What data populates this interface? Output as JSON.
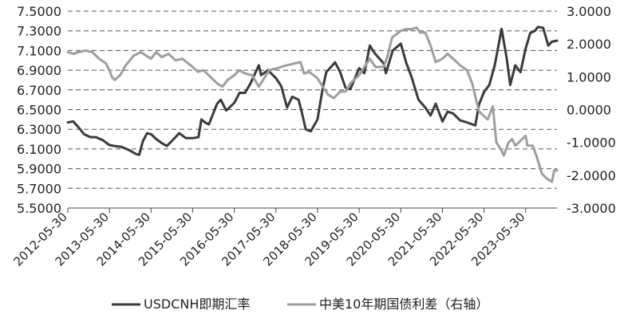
{
  "chart_data": {
    "type": "line",
    "title": "",
    "xlabel": "",
    "ylabel": "",
    "x_tick_labels": [
      "2012-05-30",
      "2013-05-30",
      "2014-05-30",
      "2015-05-30",
      "2016-05-30",
      "2017-05-30",
      "2018-05-30",
      "2019-05-30",
      "2020-05-30",
      "2021-05-30",
      "2022-05-30",
      "2023-05-30"
    ],
    "x_range": [
      "2012-05-30",
      "2024-02-29"
    ],
    "left_axis": {
      "ylim": [
        5.5,
        7.5
      ],
      "tick_labels": [
        "5.5000",
        "5.7000",
        "5.9000",
        "6.1000",
        "6.3000",
        "6.5000",
        "6.7000",
        "6.9000",
        "7.1000",
        "7.3000",
        "7.5000"
      ],
      "ticks": [
        5.5,
        5.7,
        5.9,
        6.1,
        6.3,
        6.5,
        6.7,
        6.9,
        7.1,
        7.3,
        7.5
      ]
    },
    "right_axis": {
      "ylim": [
        -3.0,
        3.0
      ],
      "tick_labels": [
        "-3.0000",
        "-2.0000",
        "-1.0000",
        "0.0000",
        "1.0000",
        "2.0000",
        "3.0000"
      ],
      "ticks": [
        -3,
        -2,
        -1,
        0,
        1,
        2,
        3
      ]
    },
    "grid": true,
    "legend_position": "bottom",
    "series": [
      {
        "name": "USDCNH即期汇率",
        "axis": "left",
        "color": "#3a3a3a",
        "points": [
          [
            "2012-05-30",
            6.37
          ],
          [
            "2012-07-15",
            6.38
          ],
          [
            "2012-09-01",
            6.32
          ],
          [
            "2012-10-20",
            6.25
          ],
          [
            "2012-12-15",
            6.22
          ],
          [
            "2013-02-01",
            6.22
          ],
          [
            "2013-04-01",
            6.19
          ],
          [
            "2013-05-30",
            6.14
          ],
          [
            "2013-07-15",
            6.13
          ],
          [
            "2013-09-15",
            6.12
          ],
          [
            "2013-11-15",
            6.09
          ],
          [
            "2014-01-15",
            6.05
          ],
          [
            "2014-02-15",
            6.04
          ],
          [
            "2014-03-20",
            6.18
          ],
          [
            "2014-04-25",
            6.26
          ],
          [
            "2014-05-30",
            6.25
          ],
          [
            "2014-07-15",
            6.2
          ],
          [
            "2014-09-01",
            6.16
          ],
          [
            "2014-10-15",
            6.13
          ],
          [
            "2014-12-15",
            6.2
          ],
          [
            "2015-02-01",
            6.26
          ],
          [
            "2015-04-01",
            6.21
          ],
          [
            "2015-05-30",
            6.21
          ],
          [
            "2015-07-20",
            6.22
          ],
          [
            "2015-08-15",
            6.4
          ],
          [
            "2015-09-15",
            6.37
          ],
          [
            "2015-10-20",
            6.35
          ],
          [
            "2015-12-31",
            6.56
          ],
          [
            "2016-02-01",
            6.6
          ],
          [
            "2016-03-20",
            6.49
          ],
          [
            "2016-05-30",
            6.57
          ],
          [
            "2016-07-15",
            6.67
          ],
          [
            "2016-09-01",
            6.67
          ],
          [
            "2016-10-20",
            6.77
          ],
          [
            "2016-12-31",
            6.95
          ],
          [
            "2017-01-20",
            6.85
          ],
          [
            "2017-03-20",
            6.9
          ],
          [
            "2017-05-30",
            6.82
          ],
          [
            "2017-07-15",
            6.74
          ],
          [
            "2017-09-05",
            6.52
          ],
          [
            "2017-10-20",
            6.63
          ],
          [
            "2017-12-15",
            6.6
          ],
          [
            "2018-01-15",
            6.46
          ],
          [
            "2018-02-15",
            6.3
          ],
          [
            "2018-04-01",
            6.28
          ],
          [
            "2018-05-30",
            6.4
          ],
          [
            "2018-07-15",
            6.72
          ],
          [
            "2018-08-15",
            6.88
          ],
          [
            "2018-10-31",
            6.98
          ],
          [
            "2018-12-15",
            6.88
          ],
          [
            "2019-01-31",
            6.72
          ],
          [
            "2019-03-15",
            6.71
          ],
          [
            "2019-05-30",
            6.92
          ],
          [
            "2019-07-15",
            6.87
          ],
          [
            "2019-09-01",
            7.15
          ],
          [
            "2019-10-15",
            7.07
          ],
          [
            "2019-12-31",
            6.97
          ],
          [
            "2020-01-20",
            6.87
          ],
          [
            "2020-03-20",
            7.1
          ],
          [
            "2020-05-30",
            7.17
          ],
          [
            "2020-07-15",
            6.98
          ],
          [
            "2020-09-01",
            6.83
          ],
          [
            "2020-11-01",
            6.6
          ],
          [
            "2020-12-31",
            6.52
          ],
          [
            "2021-02-15",
            6.44
          ],
          [
            "2021-04-01",
            6.56
          ],
          [
            "2021-05-30",
            6.38
          ],
          [
            "2021-07-15",
            6.48
          ],
          [
            "2021-09-01",
            6.46
          ],
          [
            "2021-11-01",
            6.39
          ],
          [
            "2021-12-31",
            6.37
          ],
          [
            "2022-02-15",
            6.35
          ],
          [
            "2022-03-15",
            6.34
          ],
          [
            "2022-04-15",
            6.55
          ],
          [
            "2022-05-30",
            6.68
          ],
          [
            "2022-07-15",
            6.75
          ],
          [
            "2022-09-01",
            6.95
          ],
          [
            "2022-10-31",
            7.32
          ],
          [
            "2022-12-15",
            7.02
          ],
          [
            "2023-01-15",
            6.75
          ],
          [
            "2023-02-28",
            6.95
          ],
          [
            "2023-04-15",
            6.88
          ],
          [
            "2023-05-30",
            7.12
          ],
          [
            "2023-07-10",
            7.28
          ],
          [
            "2023-08-20",
            7.3
          ],
          [
            "2023-09-15",
            7.34
          ],
          [
            "2023-10-31",
            7.33
          ],
          [
            "2023-12-15",
            7.15
          ],
          [
            "2024-01-15",
            7.19
          ],
          [
            "2024-02-29",
            7.2
          ]
        ]
      },
      {
        "name": "中美10年期国债利差（右轴）",
        "axis": "right",
        "color": "#9e9e9e",
        "points": [
          [
            "2012-05-30",
            1.75
          ],
          [
            "2012-07-15",
            1.7
          ],
          [
            "2012-09-01",
            1.75
          ],
          [
            "2012-11-01",
            1.8
          ],
          [
            "2013-01-01",
            1.75
          ],
          [
            "2013-03-01",
            1.55
          ],
          [
            "2013-05-01",
            1.4
          ],
          [
            "2013-05-30",
            1.2
          ],
          [
            "2013-06-20",
            1.0
          ],
          [
            "2013-07-15",
            0.9
          ],
          [
            "2013-09-01",
            1.05
          ],
          [
            "2013-10-20",
            1.35
          ],
          [
            "2013-12-31",
            1.65
          ],
          [
            "2014-03-01",
            1.75
          ],
          [
            "2014-05-30",
            1.55
          ],
          [
            "2014-07-15",
            1.75
          ],
          [
            "2014-09-01",
            1.6
          ],
          [
            "2014-11-01",
            1.7
          ],
          [
            "2014-12-31",
            1.5
          ],
          [
            "2015-03-01",
            1.55
          ],
          [
            "2015-05-30",
            1.3
          ],
          [
            "2015-07-15",
            1.15
          ],
          [
            "2015-09-01",
            1.2
          ],
          [
            "2015-11-01",
            1.0
          ],
          [
            "2015-12-31",
            0.8
          ],
          [
            "2016-02-15",
            0.7
          ],
          [
            "2016-04-01",
            0.9
          ],
          [
            "2016-05-30",
            1.05
          ],
          [
            "2016-07-15",
            1.2
          ],
          [
            "2016-09-01",
            1.1
          ],
          [
            "2016-11-01",
            1.05
          ],
          [
            "2016-12-31",
            0.7
          ],
          [
            "2017-02-15",
            0.95
          ],
          [
            "2017-04-01",
            1.2
          ],
          [
            "2017-05-30",
            1.25
          ],
          [
            "2017-07-15",
            1.3
          ],
          [
            "2017-09-01",
            1.35
          ],
          [
            "2017-11-01",
            1.4
          ],
          [
            "2017-12-31",
            1.45
          ],
          [
            "2018-02-01",
            1.1
          ],
          [
            "2018-03-15",
            1.15
          ],
          [
            "2018-05-15",
            1.0
          ],
          [
            "2018-05-30",
            0.95
          ],
          [
            "2018-07-15",
            0.7
          ],
          [
            "2018-09-01",
            0.45
          ],
          [
            "2018-10-20",
            0.35
          ],
          [
            "2018-12-15",
            0.55
          ],
          [
            "2019-01-31",
            0.55
          ],
          [
            "2019-03-15",
            0.8
          ],
          [
            "2019-05-30",
            1.05
          ],
          [
            "2019-07-15",
            1.3
          ],
          [
            "2019-09-01",
            1.55
          ],
          [
            "2019-10-20",
            1.3
          ],
          [
            "2019-12-31",
            1.3
          ],
          [
            "2020-02-01",
            1.6
          ],
          [
            "2020-03-15",
            2.2
          ],
          [
            "2020-05-30",
            2.4
          ],
          [
            "2020-07-15",
            2.45
          ],
          [
            "2020-09-01",
            2.45
          ],
          [
            "2020-10-15",
            2.5
          ],
          [
            "2020-11-15",
            2.35
          ],
          [
            "2020-12-31",
            2.35
          ],
          [
            "2021-02-15",
            1.95
          ],
          [
            "2021-04-01",
            1.45
          ],
          [
            "2021-05-30",
            1.55
          ],
          [
            "2021-07-15",
            1.7
          ],
          [
            "2021-09-01",
            1.55
          ],
          [
            "2021-11-01",
            1.35
          ],
          [
            "2021-12-31",
            1.2
          ],
          [
            "2022-02-15",
            0.8
          ],
          [
            "2022-03-15",
            0.4
          ],
          [
            "2022-04-15",
            -0.05
          ],
          [
            "2022-05-30",
            -0.2
          ],
          [
            "2022-07-01",
            -0.3
          ],
          [
            "2022-08-15",
            0.1
          ],
          [
            "2022-09-15",
            -1.0
          ],
          [
            "2022-10-31",
            -1.25
          ],
          [
            "2022-11-20",
            -1.4
          ],
          [
            "2022-12-31",
            -1.0
          ],
          [
            "2023-01-31",
            -0.9
          ],
          [
            "2023-03-01",
            -1.1
          ],
          [
            "2023-04-15",
            -0.95
          ],
          [
            "2023-05-30",
            -0.8
          ],
          [
            "2023-06-15",
            -1.1
          ],
          [
            "2023-07-31",
            -1.1
          ],
          [
            "2023-09-01",
            -1.4
          ],
          [
            "2023-10-20",
            -1.95
          ],
          [
            "2023-12-01",
            -2.1
          ],
          [
            "2024-01-15",
            -2.2
          ],
          [
            "2024-02-05",
            -1.85
          ],
          [
            "2024-02-29",
            -1.85
          ]
        ]
      }
    ]
  }
}
